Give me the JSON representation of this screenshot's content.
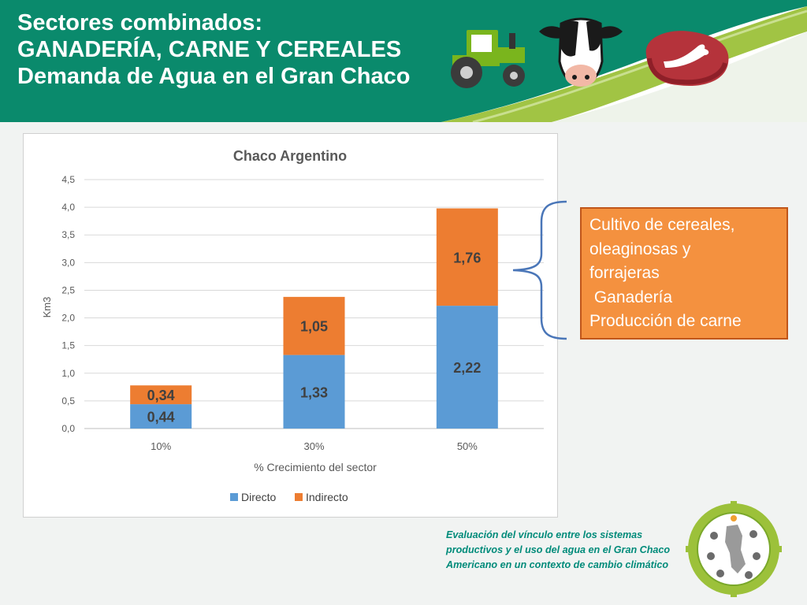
{
  "header": {
    "title_lines": [
      "Sectores combinados:",
      "GANADERÍA, CARNE Y CEREALES",
      "Demanda de Agua en el Gran Chaco"
    ],
    "icons": [
      "tractor-icon",
      "cow-icon",
      "steak-icon"
    ]
  },
  "chart_data": {
    "type": "bar",
    "stacked": true,
    "title": "Chaco Argentino",
    "xlabel": "% Crecimiento del sector",
    "ylabel": "Km3",
    "categories": [
      "10%",
      "30%",
      "50%"
    ],
    "series": [
      {
        "name": "Directo",
        "color": "#5b9bd5",
        "values": [
          0.44,
          1.33,
          2.22
        ],
        "labels": [
          "0,44",
          "1,33",
          "2,22"
        ]
      },
      {
        "name": "Indirecto",
        "color": "#ed7d31",
        "values": [
          0.34,
          1.05,
          1.76
        ],
        "labels": [
          "0,34",
          "1,05",
          "1,76"
        ]
      }
    ],
    "ylim": [
      0,
      4.5
    ],
    "yticks": [
      "0,0",
      "0,5",
      "1,0",
      "1,5",
      "2,0",
      "2,5",
      "3,0",
      "3,5",
      "4,0",
      "4,5"
    ],
    "grid": true,
    "legend": "bottom"
  },
  "info_box": {
    "lines": [
      "Cultivo de cereales,",
      "oleaginosas y",
      "forrajeras",
      " Ganadería",
      "Producción de carne"
    ],
    "fill_color": "#f4913f"
  },
  "footer": {
    "lines": [
      "Evaluación del vínculo entre los sistemas",
      "productivos y el uso del agua en el Gran Chaco",
      "Americano en un contexto de cambio climático"
    ]
  },
  "colors": {
    "banner_green": "#0a8a6c",
    "accent_lime": "#9cc13a",
    "text_teal": "#008b7a"
  }
}
